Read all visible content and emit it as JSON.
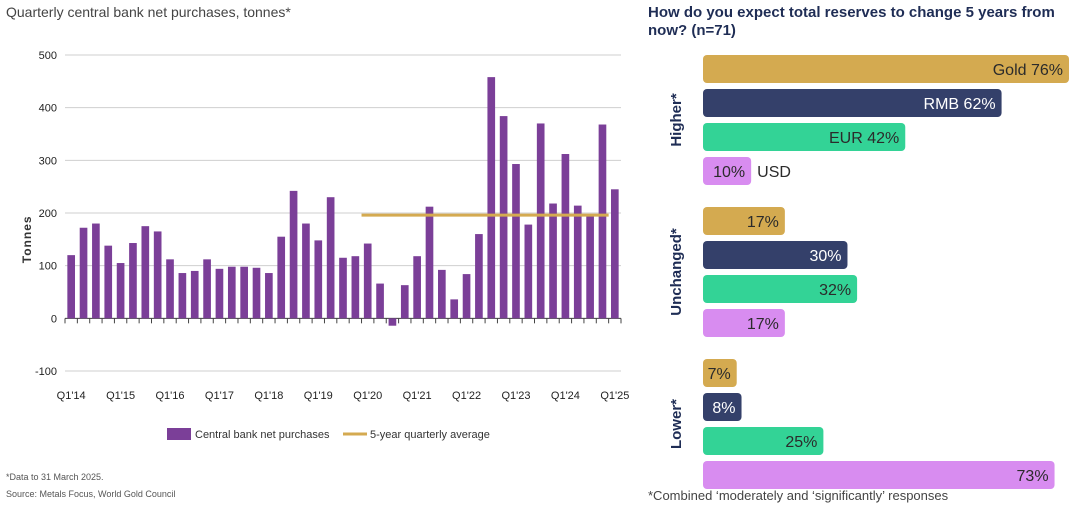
{
  "left": {
    "title": "Quarterly central bank net purchases, tonnes*",
    "footnote": "*Data to 31 March 2025.",
    "source": "Source: Metals Focus, World Gold Council"
  },
  "right": {
    "title": "How do you expect total reserves to change 5 years from now? (n=71)",
    "footnote": "*Combined ‘moderately and ‘significantly’ responses"
  },
  "colors": {
    "purchases": "#7b3f98",
    "average": "#d4aa50",
    "gold": "#d4aa50",
    "rmb": "#34406a",
    "eur": "#33d396",
    "usd": "#d88cf0"
  },
  "chart_data": [
    {
      "type": "bar",
      "title": "Quarterly central bank net purchases, tonnes*",
      "ylabel": "Tonnes",
      "xlabel": "",
      "ylim": [
        -100,
        500
      ],
      "yticks": [
        -100,
        0,
        100,
        200,
        300,
        400,
        500
      ],
      "grid": true,
      "x_tick_labels": [
        "Q1'14",
        "Q1'15",
        "Q1'16",
        "Q1'17",
        "Q1'18",
        "Q1'19",
        "Q1'20",
        "Q1'21",
        "Q1'22",
        "Q1'23",
        "Q1'24",
        "Q1'25"
      ],
      "categories": [
        "Q1'14",
        "Q2'14",
        "Q3'14",
        "Q4'14",
        "Q1'15",
        "Q2'15",
        "Q3'15",
        "Q4'15",
        "Q1'16",
        "Q2'16",
        "Q3'16",
        "Q4'16",
        "Q1'17",
        "Q2'17",
        "Q3'17",
        "Q4'17",
        "Q1'18",
        "Q2'18",
        "Q3'18",
        "Q4'18",
        "Q1'19",
        "Q2'19",
        "Q3'19",
        "Q4'19",
        "Q1'20",
        "Q2'20",
        "Q3'20",
        "Q4'20",
        "Q1'21",
        "Q2'21",
        "Q3'21",
        "Q4'21",
        "Q1'22",
        "Q2'22",
        "Q3'22",
        "Q4'22",
        "Q1'23",
        "Q2'23",
        "Q3'23",
        "Q4'23",
        "Q1'24",
        "Q2'24",
        "Q3'24",
        "Q4'24",
        "Q1'25"
      ],
      "series": [
        {
          "name": "Central bank net purchases",
          "values": [
            120,
            172,
            180,
            138,
            105,
            143,
            175,
            165,
            112,
            86,
            90,
            112,
            94,
            98,
            98,
            96,
            86,
            155,
            242,
            180,
            148,
            230,
            115,
            118,
            142,
            66,
            -14,
            63,
            118,
            212,
            92,
            36,
            84,
            160,
            458,
            384,
            293,
            178,
            370,
            218,
            312,
            214,
            198,
            368,
            245
          ]
        }
      ],
      "average": {
        "name": "5-year quarterly average",
        "value": 196,
        "from": "Q1'20",
        "to": "Q4'24"
      },
      "legend": "bottom"
    },
    {
      "type": "bar",
      "orientation": "horizontal",
      "title": "How do you expect total reserves to change 5 years from now? (n=71)",
      "xlim": [
        0,
        100
      ],
      "groups": [
        {
          "label": "Higher*",
          "items": [
            {
              "currency": "Gold",
              "value": 76,
              "text": "Gold 76%",
              "key": "gold"
            },
            {
              "currency": "RMB",
              "value": 62,
              "text": "RMB 62%",
              "key": "rmb"
            },
            {
              "currency": "EUR",
              "value": 42,
              "text": "EUR 42%",
              "key": "eur"
            },
            {
              "currency": "USD",
              "value": 10,
              "text": "10%",
              "outside": "USD",
              "key": "usd"
            }
          ]
        },
        {
          "label": "Unchanged*",
          "items": [
            {
              "currency": "Gold",
              "value": 17,
              "text": "17%",
              "key": "gold"
            },
            {
              "currency": "RMB",
              "value": 30,
              "text": "30%",
              "key": "rmb"
            },
            {
              "currency": "EUR",
              "value": 32,
              "text": "32%",
              "key": "eur"
            },
            {
              "currency": "USD",
              "value": 17,
              "text": "17%",
              "key": "usd"
            }
          ]
        },
        {
          "label": "Lower*",
          "items": [
            {
              "currency": "Gold",
              "value": 7,
              "text": "7%",
              "key": "gold"
            },
            {
              "currency": "RMB",
              "value": 8,
              "text": "8%",
              "key": "rmb"
            },
            {
              "currency": "EUR",
              "value": 25,
              "text": "25%",
              "key": "eur"
            },
            {
              "currency": "USD",
              "value": 73,
              "text": "73%",
              "key": "usd"
            }
          ]
        }
      ]
    }
  ]
}
